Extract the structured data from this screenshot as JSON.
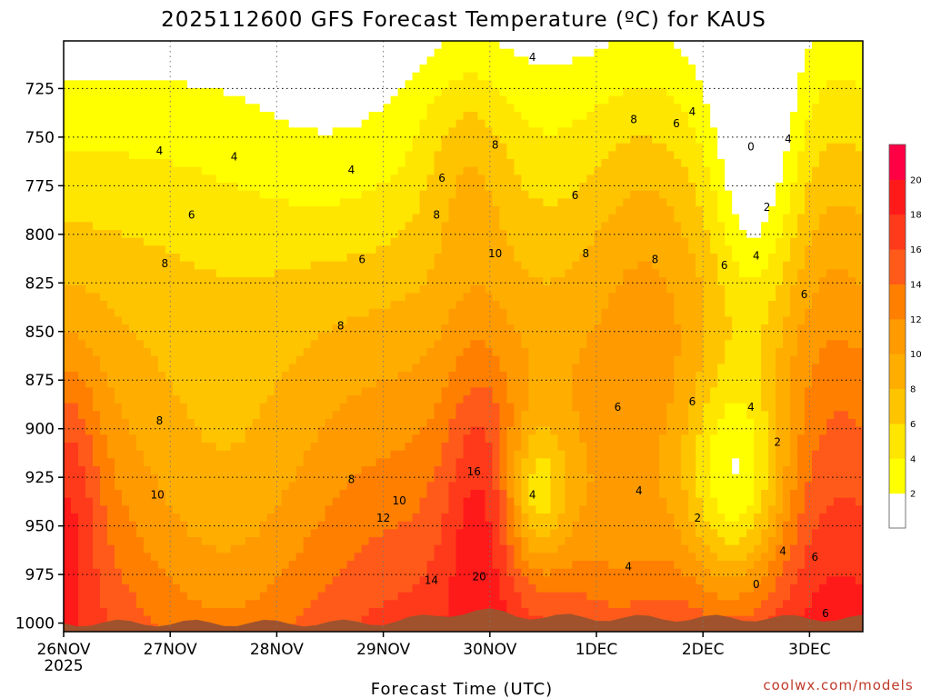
{
  "chart_data": {
    "type": "heatmap",
    "title": "2025112600 GFS Forecast Temperature (ºC) for KAUS",
    "xlabel": "Forecast Time (UTC)",
    "ylabel": "",
    "credit": "coolwx.com/models",
    "x_ticks": [
      "26NOV",
      "27NOV",
      "28NOV",
      "29NOV",
      "30NOV",
      "1DEC",
      "2DEC",
      "3DEC"
    ],
    "x_year": "2025",
    "y_ticks": [
      725,
      750,
      775,
      800,
      825,
      850,
      875,
      900,
      925,
      950,
      975,
      1000
    ],
    "y_range_hPa": [
      1000,
      700
    ],
    "x_range_days": [
      0,
      7.5
    ],
    "colorbar": {
      "levels": [
        2,
        4,
        6,
        8,
        10,
        12,
        14,
        16,
        18,
        20
      ],
      "colors": [
        "#ffffff",
        "#ffff00",
        "#ffe600",
        "#ffc400",
        "#ffae00",
        "#ff9a00",
        "#ff7f00",
        "#ff5a1a",
        "#ff3a1a",
        "#ff1a1a",
        "#ff0044"
      ]
    },
    "ground_color": "#a0522d",
    "contour_labels": [
      {
        "text": "4",
        "t": 0.9,
        "p": 757
      },
      {
        "text": "4",
        "t": 1.6,
        "p": 760
      },
      {
        "text": "4",
        "t": 2.7,
        "p": 767
      },
      {
        "text": "4",
        "t": 4.4,
        "p": 709
      },
      {
        "text": "4",
        "t": 5.9,
        "p": 737
      },
      {
        "text": "4",
        "t": 6.8,
        "p": 751
      },
      {
        "text": "4",
        "t": 6.5,
        "p": 811
      },
      {
        "text": "4",
        "t": 6.45,
        "p": 889
      },
      {
        "text": "4",
        "t": 4.4,
        "p": 934
      },
      {
        "text": "4",
        "t": 5.4,
        "p": 932
      },
      {
        "text": "4",
        "t": 5.3,
        "p": 971
      },
      {
        "text": "4",
        "t": 6.75,
        "p": 963
      },
      {
        "text": "6",
        "t": 1.2,
        "p": 790
      },
      {
        "text": "6",
        "t": 3.55,
        "p": 771
      },
      {
        "text": "6",
        "t": 2.8,
        "p": 813
      },
      {
        "text": "6",
        "t": 4.8,
        "p": 780
      },
      {
        "text": "6",
        "t": 5.75,
        "p": 743
      },
      {
        "text": "6",
        "t": 6.2,
        "p": 816
      },
      {
        "text": "6",
        "t": 5.2,
        "p": 889
      },
      {
        "text": "6",
        "t": 5.9,
        "p": 886
      },
      {
        "text": "6",
        "t": 6.95,
        "p": 831
      },
      {
        "text": "6",
        "t": 7.05,
        "p": 966
      },
      {
        "text": "6",
        "t": 7.15,
        "p": 995
      },
      {
        "text": "8",
        "t": 0.95,
        "p": 815
      },
      {
        "text": "8",
        "t": 2.6,
        "p": 847
      },
      {
        "text": "8",
        "t": 3.5,
        "p": 790
      },
      {
        "text": "8",
        "t": 4.05,
        "p": 754
      },
      {
        "text": "8",
        "t": 4.9,
        "p": 810
      },
      {
        "text": "8",
        "t": 5.35,
        "p": 741
      },
      {
        "text": "8",
        "t": 5.55,
        "p": 813
      },
      {
        "text": "8",
        "t": 0.9,
        "p": 896
      },
      {
        "text": "8",
        "t": 2.7,
        "p": 926
      },
      {
        "text": "10",
        "t": 0.88,
        "p": 934
      },
      {
        "text": "10",
        "t": 3.15,
        "p": 937
      },
      {
        "text": "10",
        "t": 4.05,
        "p": 810
      },
      {
        "text": "12",
        "t": 3.0,
        "p": 946
      },
      {
        "text": "14",
        "t": 3.45,
        "p": 978
      },
      {
        "text": "16",
        "t": 3.85,
        "p": 922
      },
      {
        "text": "20",
        "t": 3.9,
        "p": 976
      },
      {
        "text": "0",
        "t": 6.45,
        "p": 755
      },
      {
        "text": "0",
        "t": 6.5,
        "p": 980
      },
      {
        "text": "2",
        "t": 6.6,
        "p": 786
      },
      {
        "text": "2",
        "t": 6.7,
        "p": 907
      },
      {
        "text": "2",
        "t": 5.95,
        "p": 946
      }
    ]
  }
}
